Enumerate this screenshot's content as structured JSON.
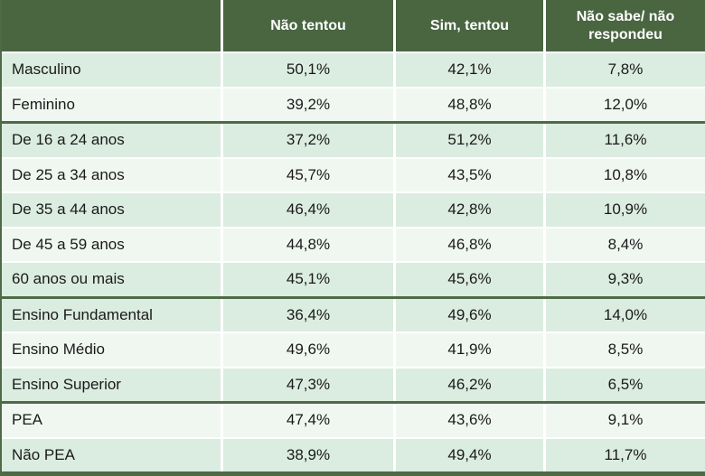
{
  "colors": {
    "header_bg": "#496641",
    "header_text": "#ffffff",
    "line_dark": "#4e6a46",
    "row_shaded": "#dbece0",
    "row_light": "#f0f7f1",
    "text_dark": "#1a1a1a"
  },
  "chart_data": {
    "type": "table",
    "title": "",
    "columns": [
      "Não tentou",
      "Sim, tentou",
      "Não sabe/ não respondeu"
    ],
    "value_format": "percent-comma-decimal",
    "rows": [
      {
        "category": "Masculino",
        "values": [
          50.1,
          42.1,
          7.8
        ],
        "shaded": true,
        "separator_before": false
      },
      {
        "category": "Feminino",
        "values": [
          39.2,
          48.8,
          12.0
        ],
        "shaded": false,
        "separator_before": false
      },
      {
        "category": "De 16 a 24 anos",
        "values": [
          37.2,
          51.2,
          11.6
        ],
        "shaded": true,
        "separator_before": true
      },
      {
        "category": "De 25 a 34 anos",
        "values": [
          45.7,
          43.5,
          10.8
        ],
        "shaded": false,
        "separator_before": false
      },
      {
        "category": "De 35 a 44 anos",
        "values": [
          46.4,
          42.8,
          10.9
        ],
        "shaded": true,
        "separator_before": false
      },
      {
        "category": "De 45 a 59 anos",
        "values": [
          44.8,
          46.8,
          8.4
        ],
        "shaded": false,
        "separator_before": false
      },
      {
        "category": "60 anos ou mais",
        "values": [
          45.1,
          45.6,
          9.3
        ],
        "shaded": true,
        "separator_before": false
      },
      {
        "category": "Ensino Fundamental",
        "values": [
          36.4,
          49.6,
          14.0
        ],
        "shaded": true,
        "separator_before": true
      },
      {
        "category": "Ensino Médio",
        "values": [
          49.6,
          41.9,
          8.5
        ],
        "shaded": false,
        "separator_before": false
      },
      {
        "category": "Ensino Superior",
        "values": [
          47.3,
          46.2,
          6.5
        ],
        "shaded": true,
        "separator_before": false
      },
      {
        "category": "PEA",
        "values": [
          47.4,
          43.6,
          9.1
        ],
        "shaded": false,
        "separator_before": true
      },
      {
        "category": "Não PEA",
        "values": [
          38.9,
          49.4,
          11.7
        ],
        "shaded": true,
        "separator_before": false
      }
    ]
  }
}
